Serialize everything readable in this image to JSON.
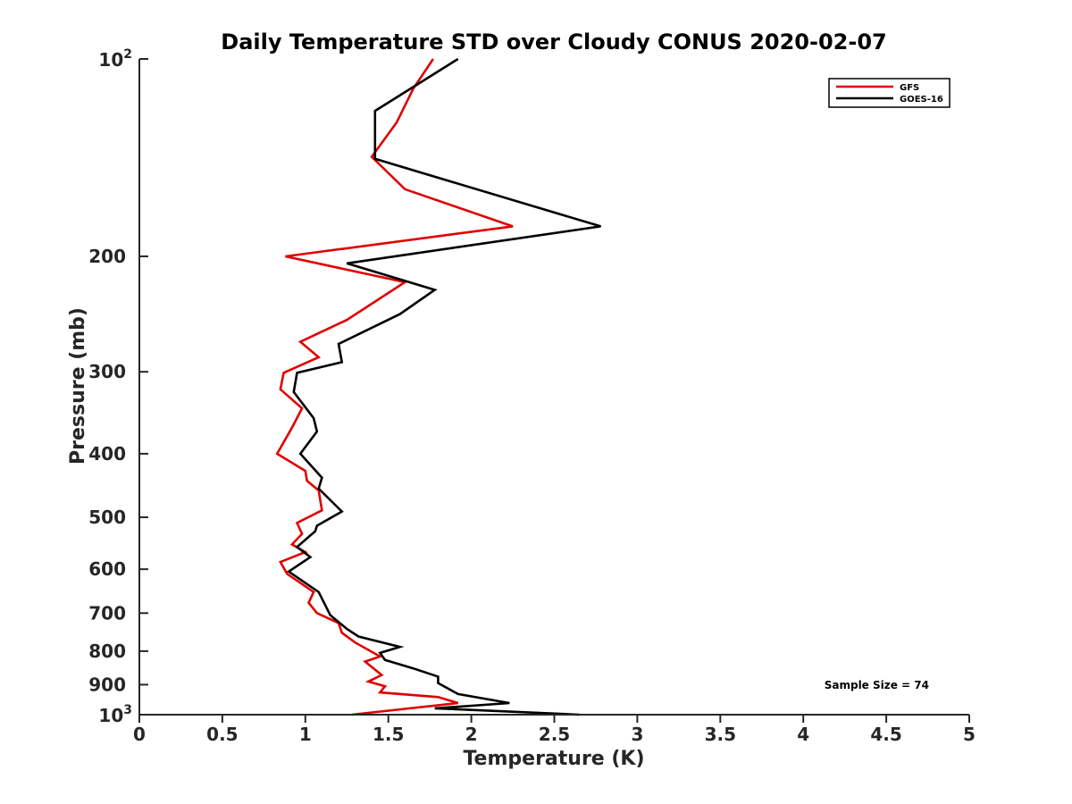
{
  "chart_data": {
    "type": "line",
    "title": "Daily Temperature STD over Cloudy CONUS 2020-02-07",
    "xlabel": "Temperature (K)",
    "ylabel": "Pressure (mb)",
    "xlim": [
      0,
      5
    ],
    "ylim": [
      100,
      1000
    ],
    "yscale": "log",
    "y_reversed": true,
    "grid": false,
    "legend_position": "top-right",
    "x_ticks": [
      0,
      0.5,
      1,
      1.5,
      2,
      2.5,
      3,
      3.5,
      4,
      4.5,
      5
    ],
    "x_tick_labels": [
      "0",
      "0.5",
      "1",
      "1.5",
      "2",
      "2.5",
      "3",
      "3.5",
      "4",
      "4.5",
      "5"
    ],
    "y_ticks": [
      {
        "value": 100,
        "base": "10",
        "exp": "2"
      },
      {
        "value": 200,
        "label": "200"
      },
      {
        "value": 300,
        "label": "300"
      },
      {
        "value": 400,
        "label": "400"
      },
      {
        "value": 500,
        "label": "500"
      },
      {
        "value": 600,
        "label": "600"
      },
      {
        "value": 700,
        "label": "700"
      },
      {
        "value": 800,
        "label": "800"
      },
      {
        "value": 900,
        "label": "900"
      },
      {
        "value": 1000,
        "base": "10",
        "exp": "3"
      }
    ],
    "annotation": "Sample Size = 74",
    "series": [
      {
        "name": "GFS",
        "color": "#e00000",
        "points": [
          [
            1.77,
            100
          ],
          [
            1.65,
            111
          ],
          [
            1.55,
            125
          ],
          [
            1.4,
            141
          ],
          [
            1.6,
            158
          ],
          [
            2.25,
            180
          ],
          [
            0.88,
            200
          ],
          [
            1.6,
            219
          ],
          [
            1.25,
            250
          ],
          [
            0.97,
            270
          ],
          [
            1.08,
            285
          ],
          [
            0.87,
            301
          ],
          [
            0.85,
            319
          ],
          [
            0.98,
            341
          ],
          [
            0.92,
            365
          ],
          [
            0.83,
            400
          ],
          [
            1.0,
            425
          ],
          [
            1.01,
            440
          ],
          [
            1.08,
            455
          ],
          [
            1.1,
            488
          ],
          [
            0.95,
            510
          ],
          [
            0.98,
            530
          ],
          [
            0.92,
            550
          ],
          [
            1.0,
            565
          ],
          [
            0.85,
            585
          ],
          [
            0.89,
            610
          ],
          [
            1.05,
            650
          ],
          [
            1.02,
            675
          ],
          [
            1.07,
            700
          ],
          [
            1.2,
            725
          ],
          [
            1.22,
            750
          ],
          [
            1.3,
            776
          ],
          [
            1.45,
            815
          ],
          [
            1.36,
            830
          ],
          [
            1.46,
            870
          ],
          [
            1.38,
            890
          ],
          [
            1.48,
            905
          ],
          [
            1.45,
            925
          ],
          [
            1.8,
            940
          ],
          [
            1.92,
            960
          ],
          [
            1.28,
            1000
          ]
        ]
      },
      {
        "name": "GOES-16",
        "color": "#000000",
        "points": [
          [
            1.92,
            100
          ],
          [
            1.42,
            120
          ],
          [
            1.42,
            135
          ],
          [
            1.42,
            142
          ],
          [
            2.78,
            180
          ],
          [
            1.25,
            205
          ],
          [
            1.78,
            225
          ],
          [
            1.57,
            245
          ],
          [
            1.2,
            272
          ],
          [
            1.22,
            290
          ],
          [
            0.95,
            301
          ],
          [
            0.93,
            322
          ],
          [
            1.05,
            353
          ],
          [
            1.07,
            370
          ],
          [
            0.97,
            400
          ],
          [
            1.1,
            435
          ],
          [
            1.08,
            452
          ],
          [
            1.22,
            490
          ],
          [
            1.07,
            515
          ],
          [
            1.06,
            525
          ],
          [
            0.95,
            555
          ],
          [
            1.03,
            575
          ],
          [
            0.9,
            605
          ],
          [
            1.08,
            650
          ],
          [
            1.15,
            705
          ],
          [
            1.25,
            740
          ],
          [
            1.32,
            760
          ],
          [
            1.57,
            788
          ],
          [
            1.45,
            805
          ],
          [
            1.48,
            825
          ],
          [
            1.65,
            850
          ],
          [
            1.8,
            875
          ],
          [
            1.8,
            895
          ],
          [
            1.92,
            930
          ],
          [
            2.23,
            960
          ],
          [
            1.78,
            978
          ],
          [
            2.65,
            1000
          ]
        ]
      }
    ]
  }
}
